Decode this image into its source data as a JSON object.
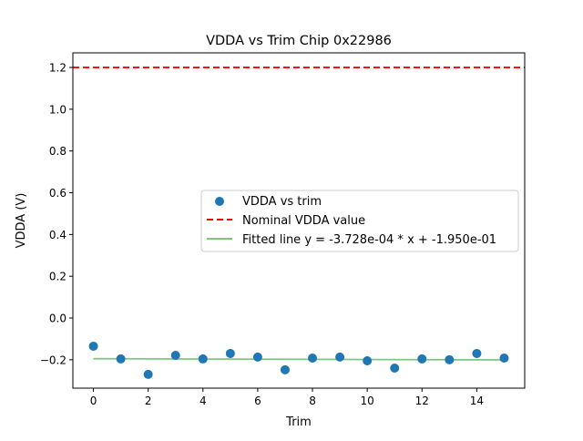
{
  "chart_data": {
    "type": "scatter",
    "title": "VDDA vs Trim Chip 0x22986",
    "xlabel": "Trim",
    "ylabel": "VDDA (V)",
    "xlim": [
      -0.75,
      15.75
    ],
    "ylim": [
      -0.336,
      1.27
    ],
    "xticks": [
      0,
      2,
      4,
      6,
      8,
      10,
      12,
      14
    ],
    "xtick_labels": [
      "0",
      "2",
      "4",
      "6",
      "8",
      "10",
      "12",
      "14"
    ],
    "yticks": [
      -0.2,
      0.0,
      0.2,
      0.4,
      0.6,
      0.8,
      1.0,
      1.2
    ],
    "ytick_labels": [
      "−0.2",
      "0.0",
      "0.2",
      "0.4",
      "0.6",
      "0.8",
      "1.0",
      "1.2"
    ],
    "grid": false,
    "legend_position": "center-right",
    "series": [
      {
        "name": "VDDA vs trim",
        "kind": "scatter",
        "color": "#1f77b4",
        "x": [
          0,
          1,
          2,
          3,
          4,
          5,
          6,
          7,
          8,
          9,
          10,
          11,
          12,
          13,
          14,
          15
        ],
        "y": [
          -0.135,
          -0.196,
          -0.27,
          -0.179,
          -0.196,
          -0.17,
          -0.187,
          -0.248,
          -0.192,
          -0.187,
          -0.205,
          -0.24,
          -0.196,
          -0.2,
          -0.17,
          -0.192
        ]
      },
      {
        "name": "Nominal VDDA value",
        "kind": "hline",
        "color": "#ff0000",
        "style": "dashed",
        "y": 1.2
      },
      {
        "name": "Fitted line y = -3.728e-04 * x + -1.950e-01",
        "kind": "line",
        "color": "#2ca02c",
        "slope": -0.0003728,
        "intercept": -0.195,
        "x": [
          0,
          15
        ]
      }
    ]
  }
}
